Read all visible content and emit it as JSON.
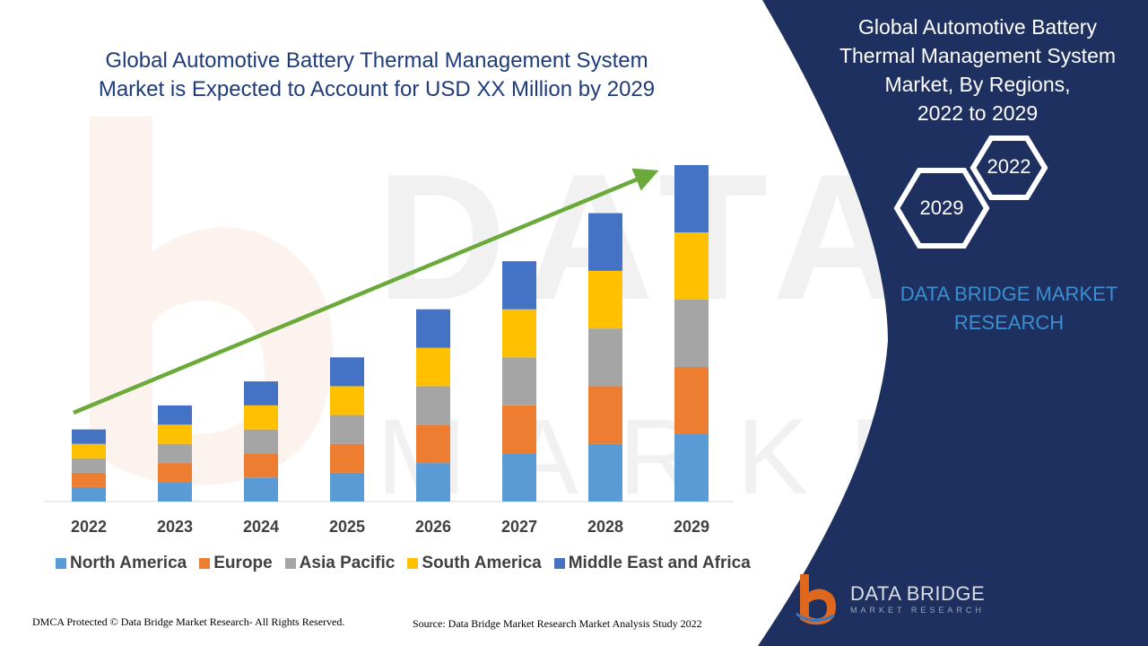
{
  "title_line1": "Global Automotive Battery Thermal Management System",
  "title_line2": "Market is Expected to Account for USD XX Million by 2029",
  "side_title_lines": [
    "Global Automotive Battery",
    "Thermal Management System",
    "Market, By Regions,",
    "2022 to 2029"
  ],
  "hex_labels": [
    "2022",
    "2029"
  ],
  "brand_text": [
    "DATA BRIDGE MARKET",
    "RESEARCH"
  ],
  "logo": {
    "name": "DATA BRIDGE",
    "sub": "MARKET RESEARCH"
  },
  "footer": {
    "dmca": "DMCA Protected © Data Bridge Market Research- All Rights Reserved.",
    "source": "Source: Data Bridge Market Research Market Analysis Study 2022"
  },
  "colors": {
    "navy_panel": "#1e3060",
    "arrow": "#6aaa3a",
    "title": "#1f3c7a"
  },
  "chart_data": {
    "type": "bar",
    "stacked": true,
    "categories": [
      "2022",
      "2023",
      "2024",
      "2025",
      "2026",
      "2027",
      "2028",
      "2029"
    ],
    "series": [
      {
        "name": "North America",
        "color": "#5b9bd5",
        "values": [
          3.0,
          4.0,
          5.0,
          6.0,
          8.0,
          10.0,
          12.0,
          14.0
        ]
      },
      {
        "name": "Europe",
        "color": "#ed7d31",
        "values": [
          3.0,
          4.0,
          5.0,
          6.0,
          8.0,
          10.0,
          12.0,
          14.0
        ]
      },
      {
        "name": "Asia Pacific",
        "color": "#a5a5a5",
        "values": [
          3.0,
          4.0,
          5.0,
          6.0,
          8.0,
          10.0,
          12.0,
          14.0
        ]
      },
      {
        "name": "South America",
        "color": "#ffc000",
        "values": [
          3.0,
          4.0,
          5.0,
          6.0,
          8.0,
          10.0,
          12.0,
          14.0
        ]
      },
      {
        "name": "Middle East and Africa",
        "color": "#4472c4",
        "values": [
          3.0,
          4.0,
          5.0,
          6.0,
          8.0,
          10.0,
          12.0,
          14.0
        ]
      }
    ],
    "ylim": [
      0,
      70
    ],
    "y_axis_visible": false,
    "grid": false,
    "legend_position": "bottom",
    "trend_arrow": true
  }
}
